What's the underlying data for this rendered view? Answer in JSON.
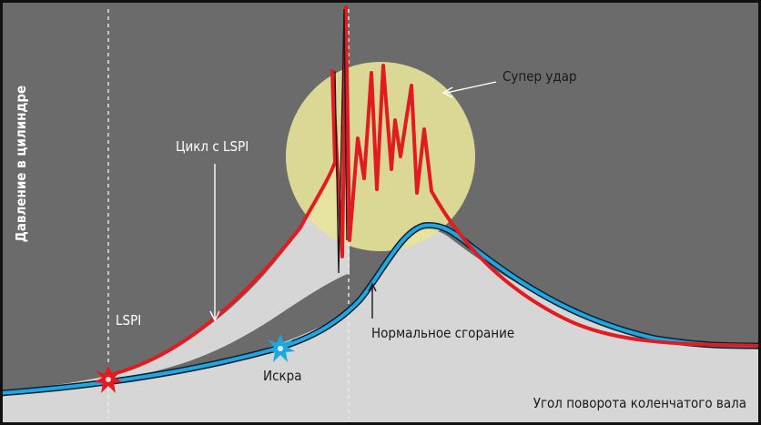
{
  "labels": {
    "y_axis": "Давление в цилиндре",
    "x_axis": "Угол поворота коленчатого вала",
    "lspi_cycle": "Цикл с LSPI",
    "super_knock": "Супер удар",
    "lspi": "LSPI",
    "normal_combustion": "Нормальное сгорание",
    "spark": "Искра"
  },
  "colors": {
    "background_dark": "#6b6b6b",
    "background_light": "#d6d6d6",
    "lspi_curve": "#e11b22",
    "normal_curve": "#1ea7e1",
    "knock_zone": "#e8e39a",
    "spark_marker": "#e11b22"
  },
  "icons": [
    "spark-star-icon",
    "lspi-star-icon"
  ]
}
